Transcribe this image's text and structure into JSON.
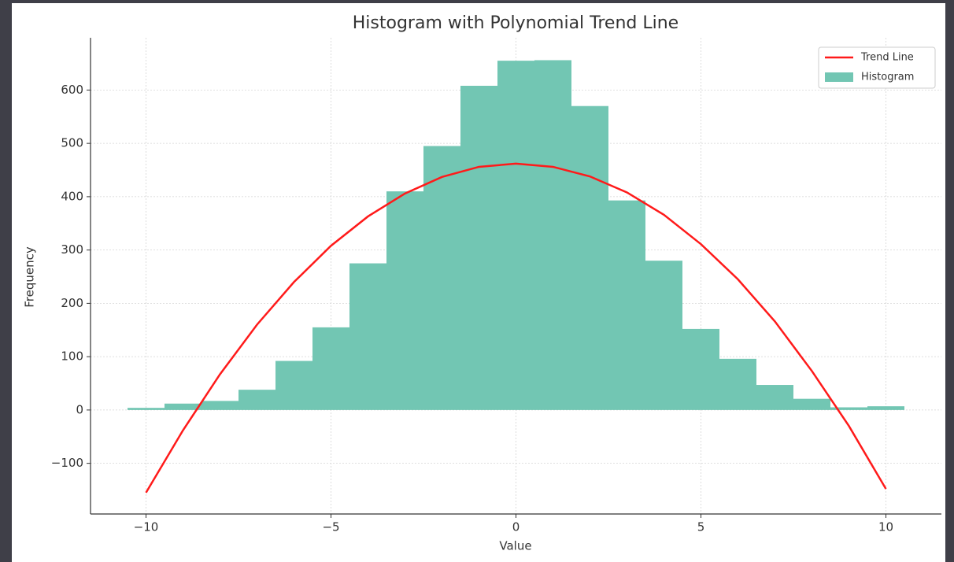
{
  "chart_data": {
    "type": "histogram",
    "title": "Histogram with Polynomial Trend Line",
    "xlabel": "Value",
    "ylabel": "Frequency",
    "histogram": {
      "name": "Histogram",
      "color": "#72c6b3",
      "bins": [
        -10.5,
        -9.5,
        -8.5,
        -7.5,
        -6.5,
        -5.5,
        -4.5,
        -3.5,
        -2.5,
        -1.5,
        -0.5,
        0.5,
        1.5,
        2.5,
        3.5,
        4.5,
        5.5,
        6.5,
        7.5,
        8.5,
        9.5,
        10.5
      ],
      "counts": [
        4,
        12,
        17,
        38,
        92,
        155,
        275,
        410,
        495,
        608,
        655,
        656,
        570,
        393,
        280,
        152,
        96,
        47,
        21,
        5,
        7
      ]
    },
    "trend": {
      "name": "Trend Line",
      "color": "#ff1a1a",
      "x": [
        -10,
        -9,
        -8,
        -7,
        -6,
        -5,
        -4,
        -3,
        -2,
        -1,
        0,
        1,
        2,
        3,
        4,
        5,
        6,
        7,
        8,
        9,
        10
      ],
      "values": [
        -155,
        -38,
        67,
        160,
        240,
        308,
        363,
        406,
        437,
        456,
        462,
        456,
        438,
        408,
        366,
        311,
        245,
        166,
        73,
        -30,
        -148
      ]
    },
    "xlim": [
      -11.5,
      11.5
    ],
    "xticks": [
      {
        "value": -10,
        "label": "−10"
      },
      {
        "value": -5,
        "label": "−5"
      },
      0,
      5,
      10
    ],
    "ylim": [
      -195,
      698
    ],
    "yticks": [
      {
        "value": -100,
        "label": "−100"
      },
      0,
      100,
      200,
      300,
      400,
      500,
      600
    ],
    "grid": true,
    "legend": "upper right"
  }
}
